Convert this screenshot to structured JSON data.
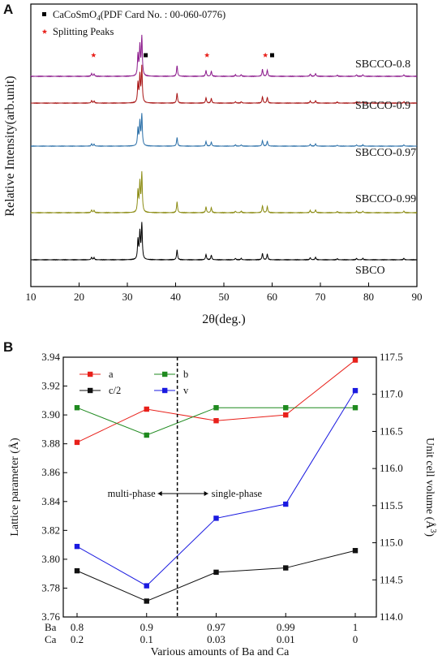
{
  "chart_data": [
    {
      "panel": "A",
      "type": "line",
      "xlabel": "2θ(deg.)",
      "ylabel": "Relative Intensity(arb.unit)",
      "xlim": [
        10,
        90
      ],
      "xticks": [
        10,
        20,
        30,
        40,
        50,
        60,
        70,
        80,
        90
      ],
      "legend": {
        "placement": "top-left",
        "entries": [
          {
            "marker": "square",
            "color": "#000000",
            "label_main": "CaCoSmO",
            "label_sub": "4",
            "label_rest": "(PDF Card No. : 00-060-0776)"
          },
          {
            "marker": "star",
            "color": "#e8201a",
            "label": "Splitting Peaks"
          }
        ]
      },
      "peaks": [
        {
          "x": 22.6,
          "h": 0.07
        },
        {
          "x": 23.1,
          "h": 0.06
        },
        {
          "x": 32.2,
          "h": 0.55
        },
        {
          "x": 32.6,
          "h": 0.75
        },
        {
          "x": 33.0,
          "h": 1.0
        },
        {
          "x": 40.3,
          "h": 0.28
        },
        {
          "x": 46.3,
          "h": 0.15
        },
        {
          "x": 47.4,
          "h": 0.13
        },
        {
          "x": 52.4,
          "h": 0.04
        },
        {
          "x": 53.6,
          "h": 0.04
        },
        {
          "x": 58.0,
          "h": 0.18
        },
        {
          "x": 59.0,
          "h": 0.16
        },
        {
          "x": 67.9,
          "h": 0.06
        },
        {
          "x": 69.0,
          "h": 0.07
        },
        {
          "x": 73.5,
          "h": 0.03
        },
        {
          "x": 77.5,
          "h": 0.04
        },
        {
          "x": 78.8,
          "h": 0.04
        },
        {
          "x": 87.3,
          "h": 0.04
        }
      ],
      "series": [
        {
          "name": "SBCO",
          "color": "#000000"
        },
        {
          "name": "SBCCO-0.99",
          "color": "#8c8c14"
        },
        {
          "name": "SBCCO-0.97",
          "color": "#2a6fa8"
        },
        {
          "name": "SBCCO-0.9",
          "color": "#a81414"
        },
        {
          "name": "SBCCO-0.8",
          "color": "#8c1a8c"
        }
      ],
      "markers": [
        {
          "type": "star",
          "x": 23.0,
          "color": "#e8201a"
        },
        {
          "type": "square",
          "x": 33.8,
          "color": "#000000"
        },
        {
          "type": "star",
          "x": 46.5,
          "color": "#e8201a"
        },
        {
          "type": "star",
          "x": 58.6,
          "color": "#e8201a"
        },
        {
          "type": "square",
          "x": 60.0,
          "color": "#000000"
        }
      ]
    },
    {
      "panel": "B",
      "type": "line",
      "xlabel": "Various amounts of Ba and Ca",
      "ylabel": "Lattice parameter (Å)",
      "y2label_main": "Unit cell volume (Å",
      "y2label_sup": "3",
      "y2label_end": ")",
      "categories": [
        {
          "ba": "0.8",
          "ca": "0.2"
        },
        {
          "ba": "0.9",
          "ca": "0.1"
        },
        {
          "ba": "0.97",
          "ca": "0.03"
        },
        {
          "ba": "0.99",
          "ca": "0.01"
        },
        {
          "ba": "1",
          "ca": "0"
        }
      ],
      "row_labels": {
        "ba": "Ba",
        "ca": "Ca"
      },
      "ylim": [
        3.76,
        3.94
      ],
      "yticks": [
        "3.76",
        "3.78",
        "3.80",
        "3.82",
        "3.84",
        "3.86",
        "3.88",
        "3.90",
        "3.92",
        "3.94"
      ],
      "y2lim": [
        114.0,
        117.5
      ],
      "y2ticks": [
        "114.0",
        "114.5",
        "115.0",
        "115.5",
        "116.0",
        "116.5",
        "117.0",
        "117.5"
      ],
      "series": [
        {
          "name": "a",
          "axis": "left",
          "color": "#e8201a",
          "values": [
            3.881,
            3.904,
            3.896,
            3.9,
            3.938
          ]
        },
        {
          "name": "b",
          "axis": "left",
          "color": "#1f8a1f",
          "values": [
            3.905,
            3.886,
            3.905,
            3.905,
            3.905
          ]
        },
        {
          "name": "c/2",
          "axis": "left",
          "color": "#111111",
          "values": [
            3.792,
            3.771,
            3.791,
            3.794,
            3.806
          ]
        },
        {
          "name": "v",
          "axis": "right",
          "color": "#1a1ae0",
          "values": [
            114.95,
            114.42,
            115.33,
            115.52,
            117.05
          ]
        }
      ],
      "annotations": {
        "left": "multi-phase",
        "right": "single-phase"
      },
      "divider_after_index": 1
    }
  ]
}
